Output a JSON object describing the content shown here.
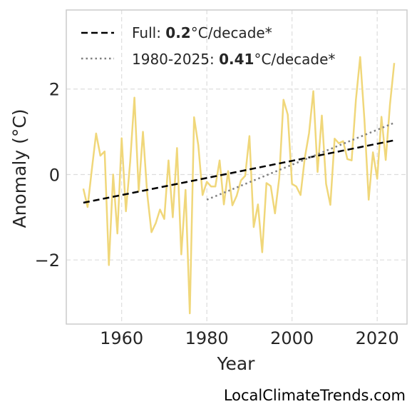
{
  "chart_data": {
    "type": "line",
    "xlabel": "Year",
    "ylabel": "Anomaly (°C)",
    "xlim": [
      1947,
      2027
    ],
    "ylim": [
      -3.5,
      3.85
    ],
    "xticks": [
      1960,
      1980,
      2000,
      2020
    ],
    "yticks": [
      -2,
      0,
      2
    ],
    "ytick_labels": [
      "−2",
      "0",
      "2"
    ],
    "grid": true,
    "legend_position": "top-left",
    "series": [
      {
        "color": "#f0d77a",
        "x": [
          1951,
          1952,
          1953,
          1954,
          1955,
          1956,
          1957,
          1958,
          1959,
          1960,
          1961,
          1962,
          1963,
          1964,
          1965,
          1966,
          1967,
          1968,
          1969,
          1970,
          1971,
          1972,
          1973,
          1974,
          1975,
          1976,
          1977,
          1978,
          1979,
          1980,
          1981,
          1982,
          1983,
          1984,
          1985,
          1986,
          1987,
          1988,
          1989,
          1990,
          1991,
          1992,
          1993,
          1994,
          1995,
          1996,
          1997,
          1998,
          1999,
          2000,
          2001,
          2002,
          2003,
          2004,
          2005,
          2006,
          2007,
          2008,
          2009,
          2010,
          2011,
          2012,
          2013,
          2014,
          2015,
          2016,
          2017,
          2018,
          2019,
          2020,
          2021,
          2022,
          2023,
          2024
        ],
        "values": [
          -0.33,
          -0.76,
          0.12,
          0.96,
          0.44,
          0.54,
          -2.12,
          0.0,
          -1.38,
          0.85,
          -0.86,
          0.3,
          1.8,
          -0.39,
          1.0,
          -0.45,
          -1.35,
          -1.14,
          -0.82,
          -1.04,
          0.33,
          -1.0,
          0.62,
          -1.87,
          -0.36,
          -3.25,
          1.34,
          0.68,
          -0.48,
          -0.17,
          -0.28,
          -0.28,
          0.33,
          -0.7,
          0.08,
          -0.72,
          -0.5,
          -0.14,
          -0.03,
          0.9,
          -1.23,
          -0.7,
          -1.82,
          -0.2,
          -0.27,
          -0.91,
          -0.08,
          1.75,
          1.4,
          -0.22,
          -0.28,
          -0.48,
          0.39,
          0.97,
          1.95,
          0.06,
          1.38,
          -0.22,
          -0.71,
          0.84,
          0.73,
          0.78,
          0.36,
          0.33,
          1.75,
          2.75,
          1.28,
          -0.59,
          0.52,
          -0.1,
          1.35,
          0.34,
          1.64,
          2.61
        ]
      },
      {
        "name": "Full",
        "color": "#000000",
        "style": "dashed",
        "x": [
          1951,
          2024
        ],
        "values": [
          -0.66,
          0.8
        ]
      },
      {
        "name": "1980-2025",
        "color": "#808080",
        "style": "dotted",
        "x": [
          1980,
          2024
        ],
        "values": [
          -0.59,
          1.21
        ]
      }
    ],
    "legend": [
      {
        "prefix": "Full: ",
        "value": "0.2",
        "suffix": "°C/decade*"
      },
      {
        "prefix": "1980-2025: ",
        "value": "0.41",
        "suffix": "°C/decade*"
      }
    ]
  },
  "watermark": "LocalClimateTrends.com"
}
